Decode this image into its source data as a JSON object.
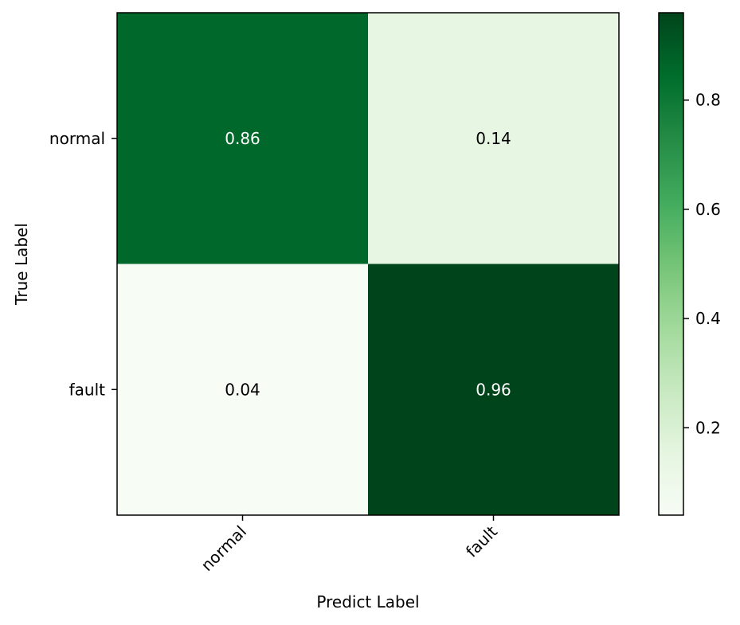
{
  "chart_data": {
    "type": "heatmap",
    "title": "",
    "xlabel": "Predict Label",
    "ylabel": "True Label",
    "x_categories": [
      "normal",
      "fault"
    ],
    "y_categories": [
      "normal",
      "fault"
    ],
    "values": [
      [
        0.86,
        0.14
      ],
      [
        0.04,
        0.96
      ]
    ],
    "cell_labels": [
      [
        "0.86",
        "0.14"
      ],
      [
        "0.04",
        "0.96"
      ]
    ],
    "colormap": "Greens",
    "colorbar": {
      "range": [
        0.04,
        0.96
      ],
      "ticks": [
        0.2,
        0.4,
        0.6,
        0.8
      ],
      "tick_labels": [
        "0.2",
        "0.4",
        "0.6",
        "0.8"
      ]
    },
    "grid": false
  }
}
